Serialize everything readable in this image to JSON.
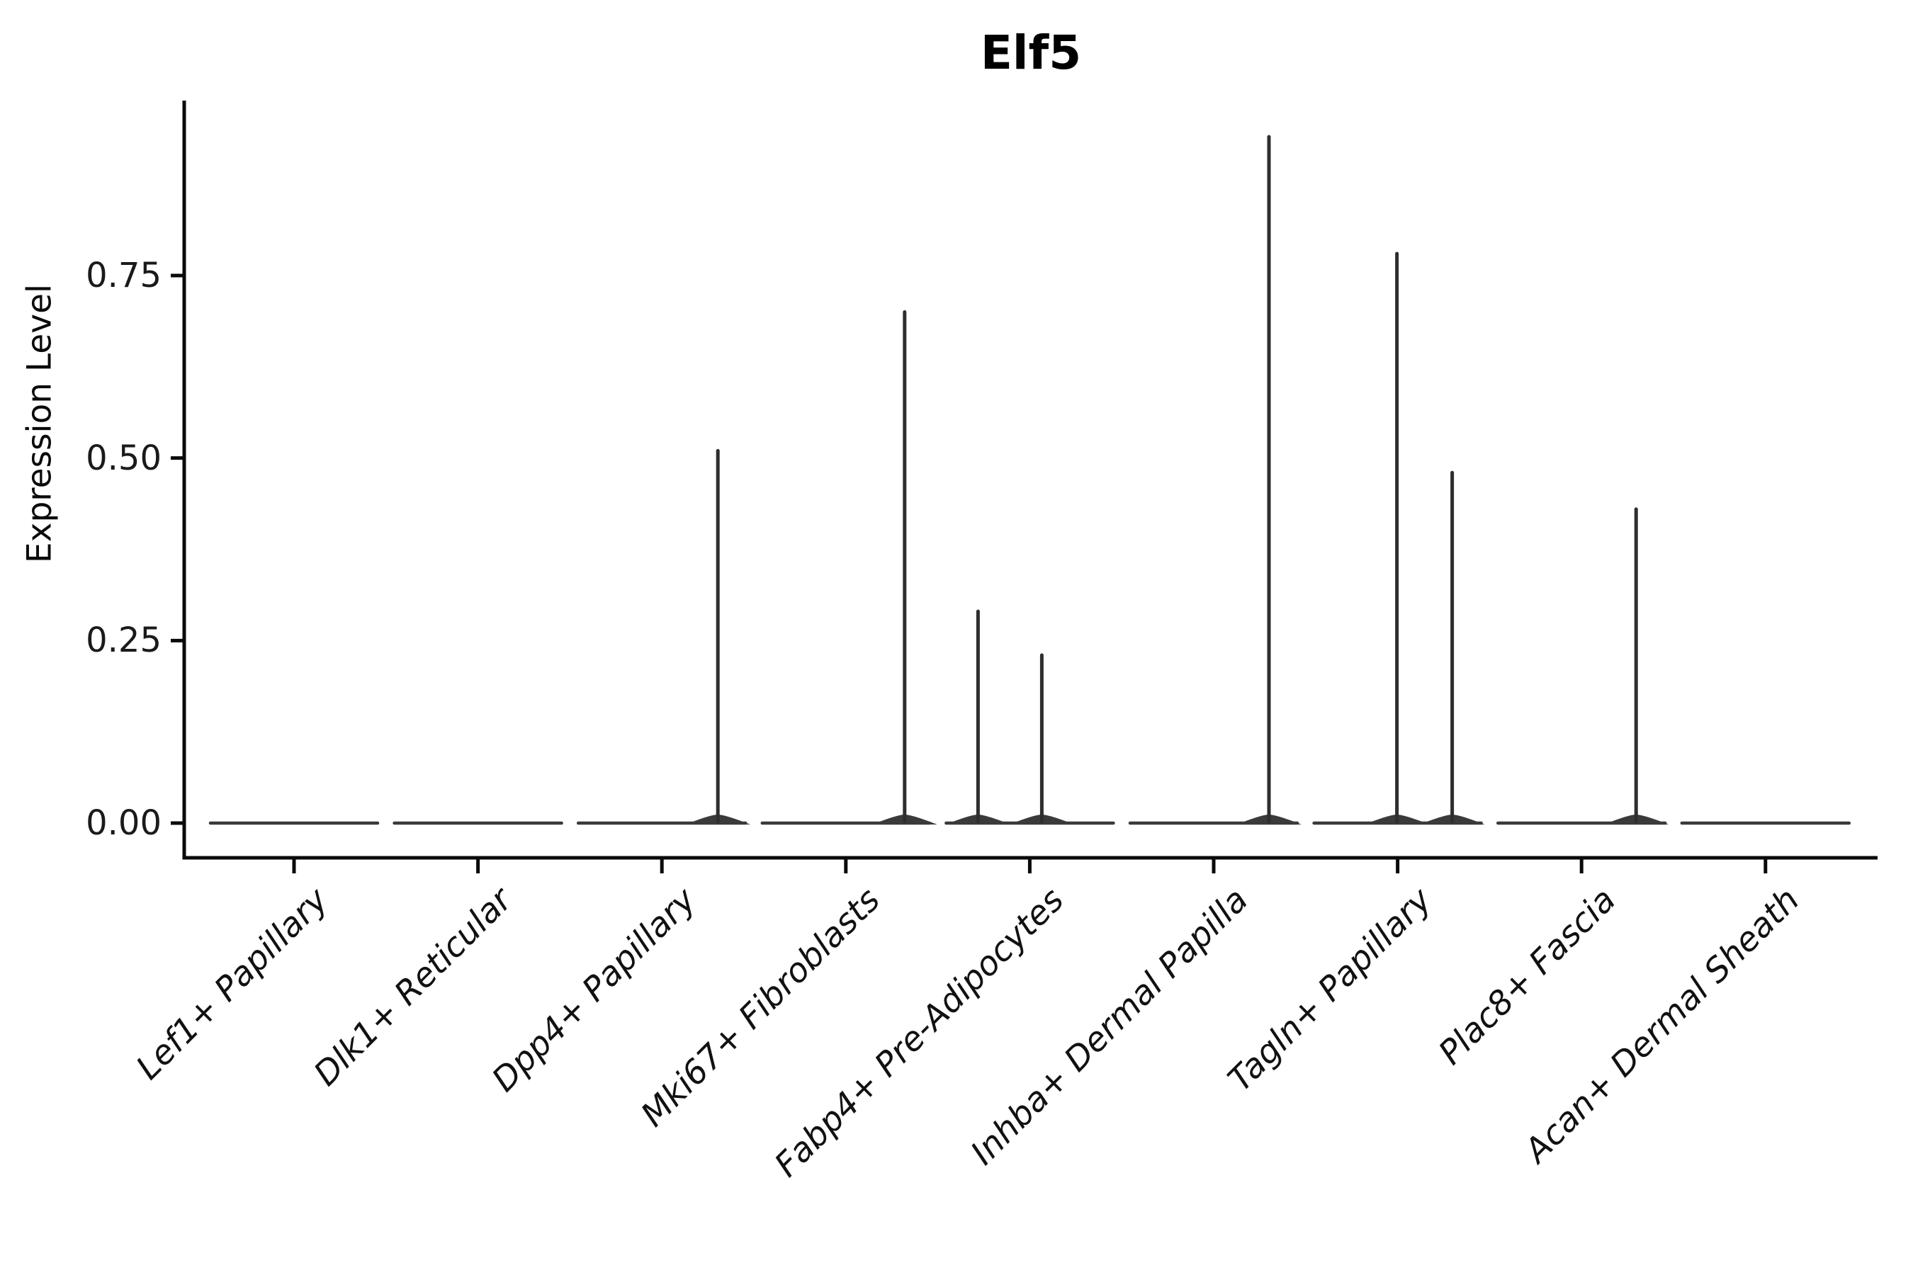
{
  "figure": {
    "title": "Elf5",
    "background_color": "#ffffff"
  },
  "chart_data": {
    "type": "violin",
    "title": "Elf5",
    "subtitle": "",
    "xlabel": "",
    "ylabel": "Expression Level",
    "legend": null,
    "grid": false,
    "ylim": [
      0,
      0.99
    ],
    "y_ticks": [
      0,
      0.25,
      0.5,
      0.75
    ],
    "y_tick_labels": [
      "0.00",
      "0.25",
      "0.50",
      "0.75"
    ],
    "categories": [
      "Lef1+ Papillary",
      "Dlk1+ Reticular",
      "Dpp4+ Papillary",
      "Mki67+ Fibroblasts",
      "Fabp4+ Pre-Adipocytes",
      "Inhba+ Dermal Papilla",
      "Tagln+ Papillary",
      "Plac8+ Fascia",
      "Acan+ Dermal Sheath"
    ],
    "series": [
      {
        "name": "Lef1+ Papillary",
        "baseline_value": 0,
        "spikes": []
      },
      {
        "name": "Dlk1+ Reticular",
        "baseline_value": 0,
        "spikes": []
      },
      {
        "name": "Dpp4+ Papillary",
        "baseline_value": 0,
        "spikes": [
          {
            "x_offset": 79,
            "value": 0.51
          }
        ]
      },
      {
        "name": "Mki67+ Fibroblasts",
        "baseline_value": 0,
        "spikes": [
          {
            "x_offset": 83,
            "value": 0.7
          }
        ]
      },
      {
        "name": "Fabp4+ Pre-Adipocytes",
        "baseline_value": 0,
        "spikes": [
          {
            "x_offset": -73,
            "value": 0.29
          },
          {
            "x_offset": 17,
            "value": 0.23
          }
        ]
      },
      {
        "name": "Inhba+ Dermal Papilla",
        "baseline_value": 0,
        "spikes": [
          {
            "x_offset": 78,
            "value": 0.94
          }
        ]
      },
      {
        "name": "Tagln+ Papillary",
        "baseline_value": 0,
        "spikes": [
          {
            "x_offset": -1,
            "value": 0.78
          },
          {
            "x_offset": 77,
            "value": 0.48
          }
        ]
      },
      {
        "name": "Plac8+ Fascia",
        "baseline_value": 0,
        "spikes": [
          {
            "x_offset": 77,
            "value": 0.43
          }
        ]
      },
      {
        "name": "Acan+ Dermal Sheath",
        "baseline_value": 0,
        "spikes": []
      }
    ],
    "colors": {
      "spine": "#0a0a0a",
      "tick": "#0a0a0a",
      "violin_line": "#2e2e2e",
      "violin_baseline": "#3a3a3a",
      "title_text": "#000000",
      "label_text": "#111111"
    }
  }
}
